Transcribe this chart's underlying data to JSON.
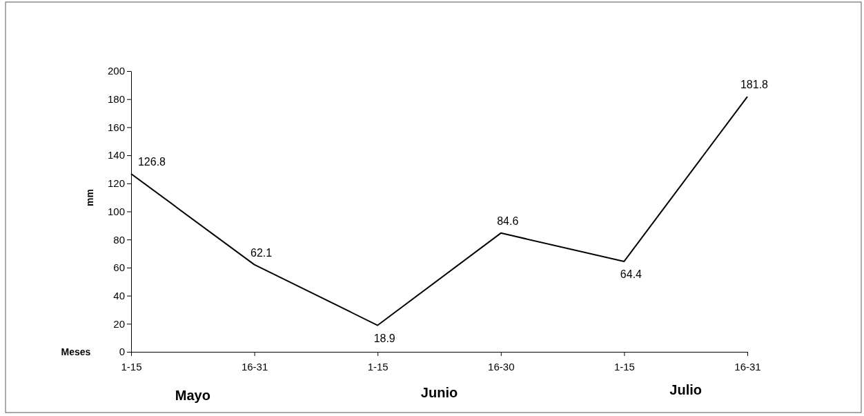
{
  "chart_data": {
    "type": "line",
    "xlabel": "Meses",
    "ylabel": "mm",
    "categories": [
      "1-15",
      "16-31",
      "1-15",
      "16-30",
      "1-15",
      "16-31"
    ],
    "series": [
      {
        "color": "#000000",
        "values": [
          126.8,
          62.1,
          18.9,
          84.6,
          64.4,
          181.8
        ]
      }
    ],
    "ylim": [
      0,
      200
    ],
    "yticks": [
      0,
      20,
      40,
      60,
      80,
      100,
      120,
      140,
      160,
      180,
      200
    ],
    "data_labels": true,
    "grid": false,
    "marker": "none",
    "line_style": "solid",
    "annotations": [
      "Mayo",
      "Junio",
      "Julio"
    ]
  }
}
